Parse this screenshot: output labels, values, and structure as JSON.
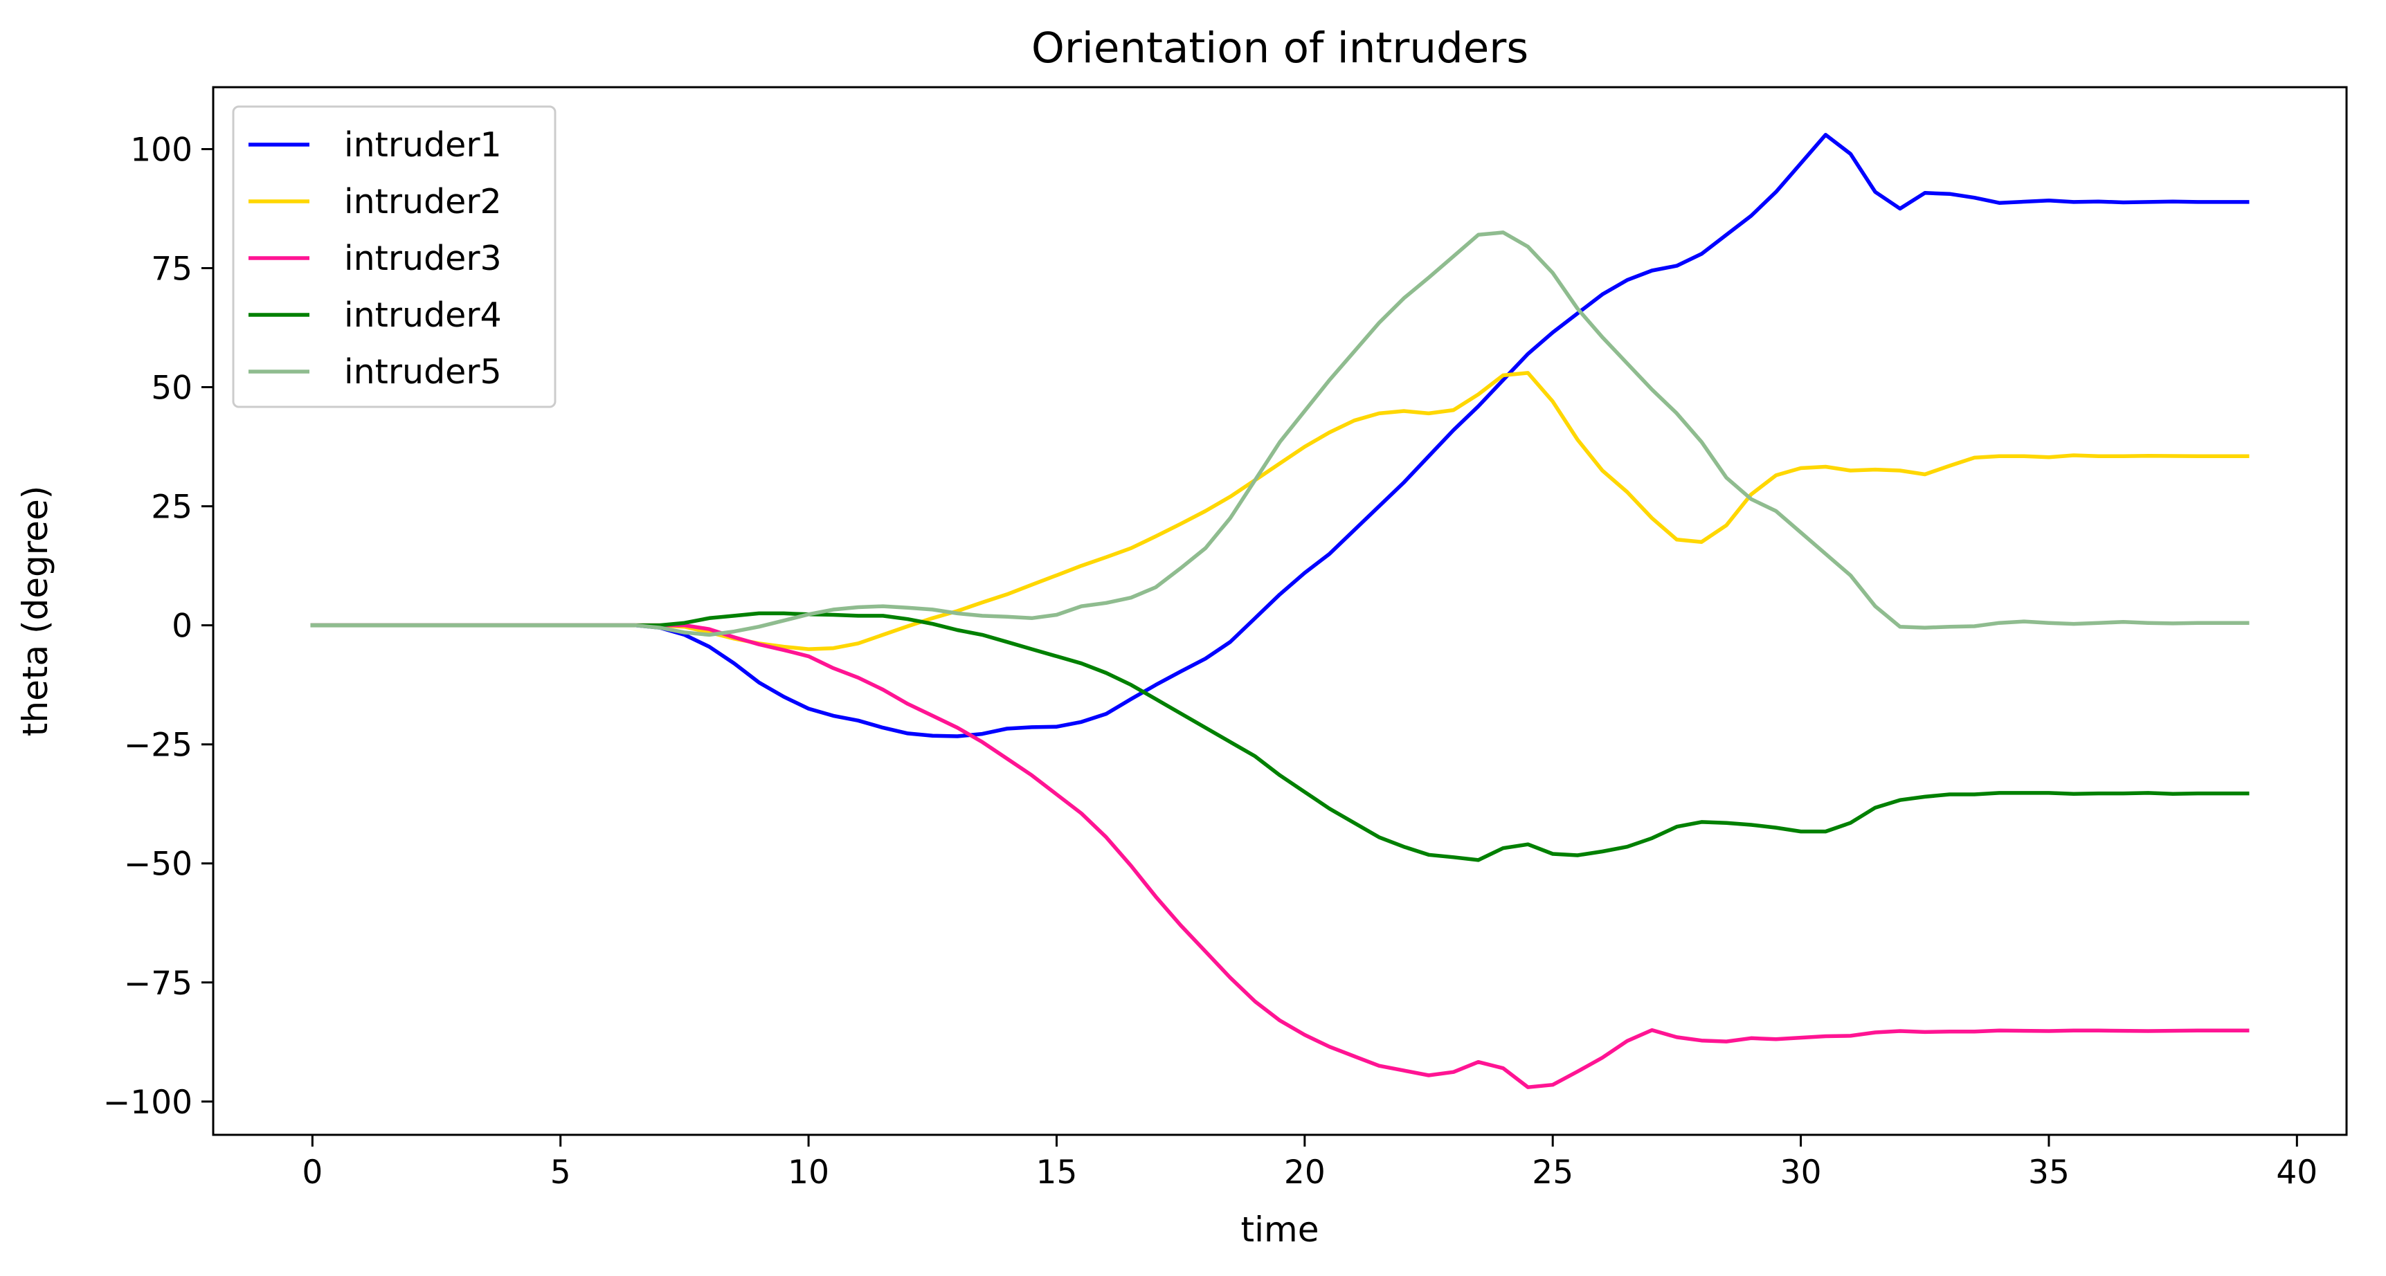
{
  "chart_data": {
    "type": "line",
    "title": "Orientation of intruders",
    "xlabel": "time",
    "ylabel": "theta (degree)",
    "xlim": [
      -2,
      41
    ],
    "ylim": [
      -107,
      113
    ],
    "xticks": [
      0,
      5,
      10,
      15,
      20,
      25,
      30,
      35,
      40
    ],
    "yticks": [
      -100,
      -75,
      -50,
      -25,
      0,
      25,
      50,
      75,
      100
    ],
    "ytick_labels": [
      "−100",
      "−75",
      "−50",
      "−25",
      "0",
      "25",
      "50",
      "75",
      "100"
    ],
    "grid": false,
    "legend_position": "upper left",
    "series": [
      {
        "name": "intruder1",
        "color": "#0000ff",
        "points": [
          [
            0,
            0
          ],
          [
            6.5,
            0
          ],
          [
            7,
            -0.5
          ],
          [
            7.5,
            -2
          ],
          [
            8,
            -4.5
          ],
          [
            8.5,
            -8
          ],
          [
            9,
            -12
          ],
          [
            9.5,
            -15
          ],
          [
            10,
            -17.5
          ],
          [
            10.5,
            -19
          ],
          [
            11,
            -20
          ],
          [
            11.5,
            -21.5
          ],
          [
            12,
            -22.7
          ],
          [
            12.5,
            -23.2
          ],
          [
            13,
            -23.3
          ],
          [
            13.5,
            -22.8
          ],
          [
            14,
            -21.7
          ],
          [
            14.5,
            -21.4
          ],
          [
            15,
            -21.3
          ],
          [
            15.5,
            -20.3
          ],
          [
            16,
            -18.6
          ],
          [
            16.5,
            -15.5
          ],
          [
            17,
            -12.5
          ],
          [
            17.5,
            -9.7
          ],
          [
            18,
            -7
          ],
          [
            18.5,
            -3.5
          ],
          [
            19,
            1.5
          ],
          [
            19.5,
            6.5
          ],
          [
            20,
            11
          ],
          [
            20.5,
            15
          ],
          [
            21,
            20
          ],
          [
            21.5,
            25
          ],
          [
            22,
            30
          ],
          [
            22.5,
            35.5
          ],
          [
            23,
            41
          ],
          [
            23.5,
            46
          ],
          [
            24,
            51.5
          ],
          [
            24.5,
            57
          ],
          [
            25,
            61.5
          ],
          [
            25.5,
            65.5
          ],
          [
            26,
            69.5
          ],
          [
            26.5,
            72.5
          ],
          [
            27,
            74.5
          ],
          [
            27.5,
            75.5
          ],
          [
            28,
            78
          ],
          [
            28.5,
            82
          ],
          [
            29,
            86
          ],
          [
            29.5,
            91
          ],
          [
            30,
            97
          ],
          [
            30.5,
            103
          ],
          [
            31,
            99
          ],
          [
            31.5,
            91
          ],
          [
            32,
            87.5
          ],
          [
            32.5,
            90.8
          ],
          [
            33,
            90.6
          ],
          [
            33.5,
            89.8
          ],
          [
            34,
            88.7
          ],
          [
            35,
            89.2
          ],
          [
            35.5,
            88.9
          ],
          [
            36,
            89
          ],
          [
            36.5,
            88.8
          ],
          [
            37,
            88.9
          ],
          [
            37.5,
            89
          ],
          [
            38,
            88.9
          ],
          [
            39,
            88.9
          ]
        ]
      },
      {
        "name": "intruder2",
        "color": "#ffd700",
        "points": [
          [
            0,
            0
          ],
          [
            7,
            0
          ],
          [
            7.5,
            -0.3
          ],
          [
            8,
            -1.5
          ],
          [
            8.5,
            -2.8
          ],
          [
            9,
            -3.8
          ],
          [
            9.5,
            -4.5
          ],
          [
            10,
            -5
          ],
          [
            10.5,
            -4.8
          ],
          [
            11,
            -3.8
          ],
          [
            11.5,
            -2
          ],
          [
            12,
            -0.2
          ],
          [
            12.5,
            1.5
          ],
          [
            13,
            3
          ],
          [
            13.5,
            4.8
          ],
          [
            14,
            6.5
          ],
          [
            14.5,
            8.5
          ],
          [
            15,
            10.5
          ],
          [
            15.5,
            12.5
          ],
          [
            16,
            14.3
          ],
          [
            16.5,
            16.2
          ],
          [
            17,
            18.7
          ],
          [
            17.5,
            21.3
          ],
          [
            18,
            24
          ],
          [
            18.5,
            27
          ],
          [
            19,
            30.5
          ],
          [
            19.5,
            34
          ],
          [
            20,
            37.5
          ],
          [
            20.5,
            40.5
          ],
          [
            21,
            43
          ],
          [
            21.5,
            44.5
          ],
          [
            22,
            45
          ],
          [
            22.5,
            44.5
          ],
          [
            23,
            45.2
          ],
          [
            23.5,
            48.5
          ],
          [
            24,
            52.5
          ],
          [
            24.5,
            53
          ],
          [
            25,
            47
          ],
          [
            25.5,
            39
          ],
          [
            26,
            32.5
          ],
          [
            26.5,
            28
          ],
          [
            27,
            22.5
          ],
          [
            27.5,
            18
          ],
          [
            28,
            17.5
          ],
          [
            28.5,
            21
          ],
          [
            29,
            27.5
          ],
          [
            29.5,
            31.5
          ],
          [
            30,
            33
          ],
          [
            30.5,
            33.3
          ],
          [
            31,
            32.5
          ],
          [
            31.5,
            32.7
          ],
          [
            32,
            32.5
          ],
          [
            32.5,
            31.7
          ],
          [
            33,
            33.5
          ],
          [
            33.5,
            35.2
          ],
          [
            34,
            35.5
          ],
          [
            34.5,
            35.5
          ],
          [
            35,
            35.3
          ],
          [
            35.5,
            35.7
          ],
          [
            36,
            35.5
          ],
          [
            36.5,
            35.5
          ],
          [
            37,
            35.6
          ],
          [
            38,
            35.5
          ],
          [
            39,
            35.5
          ]
        ]
      },
      {
        "name": "intruder3",
        "color": "#ff1493",
        "points": [
          [
            0,
            0
          ],
          [
            7.5,
            0
          ],
          [
            8,
            -0.8
          ],
          [
            8.5,
            -2.5
          ],
          [
            9,
            -4
          ],
          [
            9.5,
            -5.2
          ],
          [
            10,
            -6.5
          ],
          [
            10.5,
            -9
          ],
          [
            11,
            -11
          ],
          [
            11.5,
            -13.5
          ],
          [
            12,
            -16.5
          ],
          [
            12.5,
            -19
          ],
          [
            13,
            -21.5
          ],
          [
            13.5,
            -24.5
          ],
          [
            14,
            -28
          ],
          [
            14.5,
            -31.5
          ],
          [
            15,
            -35.5
          ],
          [
            15.5,
            -39.5
          ],
          [
            16,
            -44.5
          ],
          [
            16.5,
            -50.5
          ],
          [
            17,
            -57
          ],
          [
            17.5,
            -63
          ],
          [
            18,
            -68.5
          ],
          [
            18.5,
            -74
          ],
          [
            19,
            -79
          ],
          [
            19.5,
            -83
          ],
          [
            20,
            -86
          ],
          [
            20.5,
            -88.5
          ],
          [
            21,
            -90.5
          ],
          [
            21.5,
            -92.5
          ],
          [
            22,
            -93.5
          ],
          [
            22.5,
            -94.5
          ],
          [
            23,
            -93.8
          ],
          [
            23.5,
            -91.7
          ],
          [
            24,
            -93
          ],
          [
            24.5,
            -97
          ],
          [
            25,
            -96.5
          ],
          [
            25.5,
            -93.7
          ],
          [
            26,
            -90.8
          ],
          [
            26.5,
            -87.3
          ],
          [
            27,
            -85
          ],
          [
            27.5,
            -86.5
          ],
          [
            28,
            -87.2
          ],
          [
            28.5,
            -87.4
          ],
          [
            29,
            -86.7
          ],
          [
            29.5,
            -86.9
          ],
          [
            30,
            -86.6
          ],
          [
            30.5,
            -86.3
          ],
          [
            31,
            -86.2
          ],
          [
            31.5,
            -85.5
          ],
          [
            32,
            -85.2
          ],
          [
            32.5,
            -85.4
          ],
          [
            33,
            -85.3
          ],
          [
            33.5,
            -85.3
          ],
          [
            34,
            -85.1
          ],
          [
            35,
            -85.2
          ],
          [
            35.5,
            -85.1
          ],
          [
            36,
            -85.1
          ],
          [
            37,
            -85.2
          ],
          [
            38,
            -85.1
          ],
          [
            39,
            -85.1
          ]
        ]
      },
      {
        "name": "intruder4",
        "color": "#008000",
        "points": [
          [
            0,
            0
          ],
          [
            7,
            0
          ],
          [
            7.5,
            0.5
          ],
          [
            8,
            1.5
          ],
          [
            8.5,
            2
          ],
          [
            9,
            2.5
          ],
          [
            9.5,
            2.5
          ],
          [
            10,
            2.3
          ],
          [
            10.5,
            2.2
          ],
          [
            11,
            2
          ],
          [
            11.5,
            2
          ],
          [
            12,
            1.3
          ],
          [
            12.5,
            0.3
          ],
          [
            13,
            -1
          ],
          [
            13.5,
            -2
          ],
          [
            14,
            -3.5
          ],
          [
            14.5,
            -5
          ],
          [
            15,
            -6.5
          ],
          [
            15.5,
            -8
          ],
          [
            16,
            -10
          ],
          [
            16.5,
            -12.5
          ],
          [
            17,
            -15.5
          ],
          [
            17.5,
            -18.5
          ],
          [
            18,
            -21.5
          ],
          [
            18.5,
            -24.5
          ],
          [
            19,
            -27.5
          ],
          [
            19.5,
            -31.5
          ],
          [
            20,
            -35
          ],
          [
            20.5,
            -38.5
          ],
          [
            21,
            -41.5
          ],
          [
            21.5,
            -44.5
          ],
          [
            22,
            -46.5
          ],
          [
            22.5,
            -48.2
          ],
          [
            23,
            -48.7
          ],
          [
            23.5,
            -49.3
          ],
          [
            24,
            -46.8
          ],
          [
            24.5,
            -46
          ],
          [
            25,
            -48
          ],
          [
            25.5,
            -48.3
          ],
          [
            26,
            -47.5
          ],
          [
            26.5,
            -46.5
          ],
          [
            27,
            -44.7
          ],
          [
            27.5,
            -42.3
          ],
          [
            28,
            -41.3
          ],
          [
            28.5,
            -41.5
          ],
          [
            29,
            -41.9
          ],
          [
            29.5,
            -42.5
          ],
          [
            30,
            -43.3
          ],
          [
            30.5,
            -43.3
          ],
          [
            31,
            -41.5
          ],
          [
            31.5,
            -38.3
          ],
          [
            32,
            -36.7
          ],
          [
            32.5,
            -36
          ],
          [
            33,
            -35.5
          ],
          [
            33.5,
            -35.5
          ],
          [
            34,
            -35.2
          ],
          [
            35,
            -35.2
          ],
          [
            35.5,
            -35.4
          ],
          [
            36,
            -35.3
          ],
          [
            36.5,
            -35.3
          ],
          [
            37,
            -35.2
          ],
          [
            37.5,
            -35.4
          ],
          [
            38,
            -35.3
          ],
          [
            39,
            -35.3
          ]
        ]
      },
      {
        "name": "intruder5",
        "color": "#8fbc8f",
        "points": [
          [
            0,
            0
          ],
          [
            6.5,
            0
          ],
          [
            7,
            -0.5
          ],
          [
            7.5,
            -1.5
          ],
          [
            8,
            -2
          ],
          [
            8.5,
            -1.3
          ],
          [
            9,
            -0.3
          ],
          [
            9.5,
            1
          ],
          [
            10,
            2.3
          ],
          [
            10.5,
            3.3
          ],
          [
            11,
            3.8
          ],
          [
            11.5,
            4
          ],
          [
            12,
            3.7
          ],
          [
            12.5,
            3.3
          ],
          [
            13,
            2.5
          ],
          [
            13.5,
            2
          ],
          [
            14,
            1.8
          ],
          [
            14.5,
            1.5
          ],
          [
            15,
            2.2
          ],
          [
            15.5,
            4
          ],
          [
            16,
            4.7
          ],
          [
            16.5,
            5.8
          ],
          [
            17,
            8
          ],
          [
            17.5,
            12
          ],
          [
            18,
            16.2
          ],
          [
            18.5,
            22.5
          ],
          [
            19,
            30.5
          ],
          [
            19.5,
            38.5
          ],
          [
            20,
            45
          ],
          [
            20.5,
            51.5
          ],
          [
            21,
            57.5
          ],
          [
            21.5,
            63.5
          ],
          [
            22,
            68.7
          ],
          [
            22.5,
            73
          ],
          [
            23,
            77.5
          ],
          [
            23.5,
            82
          ],
          [
            24,
            82.5
          ],
          [
            24.5,
            79.5
          ],
          [
            25,
            74
          ],
          [
            25.5,
            66.5
          ],
          [
            26,
            60.5
          ],
          [
            26.5,
            55
          ],
          [
            27,
            49.5
          ],
          [
            27.5,
            44.5
          ],
          [
            28,
            38.5
          ],
          [
            28.5,
            31
          ],
          [
            29,
            26.5
          ],
          [
            29.5,
            24
          ],
          [
            30,
            19.5
          ],
          [
            30.5,
            15
          ],
          [
            31,
            10.5
          ],
          [
            31.5,
            4
          ],
          [
            32,
            -0.3
          ],
          [
            32.5,
            -0.5
          ],
          [
            33,
            -0.3
          ],
          [
            33.5,
            -0.2
          ],
          [
            34,
            0.5
          ],
          [
            34.5,
            0.8
          ],
          [
            35,
            0.5
          ],
          [
            35.5,
            0.3
          ],
          [
            36,
            0.5
          ],
          [
            36.5,
            0.7
          ],
          [
            37,
            0.5
          ],
          [
            37.5,
            0.4
          ],
          [
            38,
            0.5
          ],
          [
            39,
            0.5
          ]
        ]
      }
    ]
  }
}
